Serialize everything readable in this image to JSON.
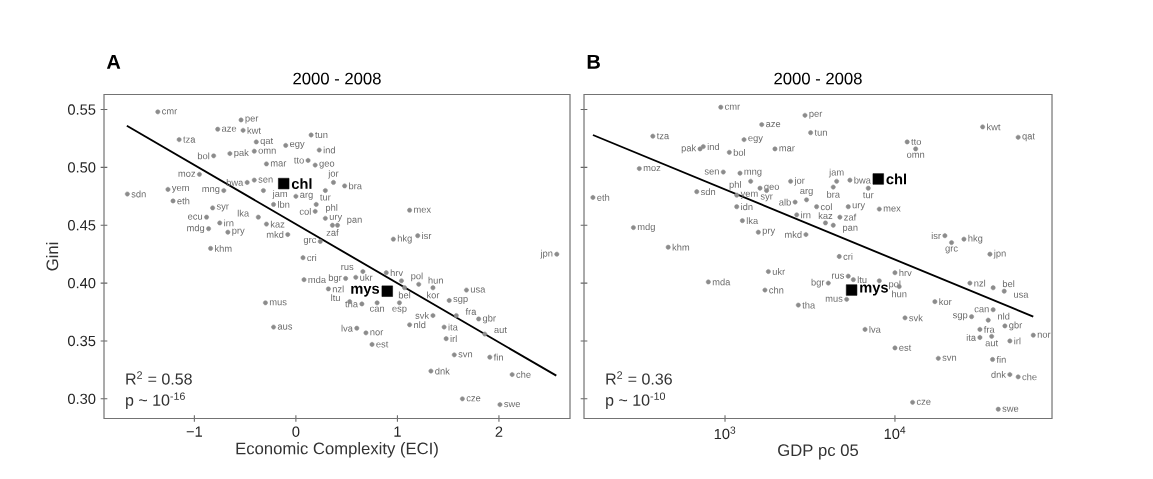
{
  "chart_data": [
    {
      "type": "scatter",
      "title": "2000 - 2008",
      "xlabel": "Economic Complexity (ECI)",
      "ylabel": "Gini",
      "marker": "circle",
      "xlim": [
        -1.89,
        2.7
      ],
      "ylim": [
        0.283,
        0.563
      ],
      "xticks": [
        {
          "value": -1,
          "label": "−1"
        },
        0,
        1,
        2
      ],
      "yticks": [
        {
          "value": 0.3,
          "label": "0.30"
        },
        {
          "value": 0.35,
          "label": "0.35"
        },
        {
          "value": 0.4,
          "label": "0.40"
        },
        {
          "value": 0.45,
          "label": "0.45"
        },
        {
          "value": 0.5,
          "label": "0.50"
        },
        {
          "value": 0.55,
          "label": "0.55"
        }
      ],
      "series": [
        {
          "color": "#8c8c8c",
          "x": [
            -1.36,
            -1.15,
            -0.77,
            -0.54,
            -0.52,
            -0.1,
            0.15,
            0.23,
            -0.81,
            -0.39,
            -0.65,
            -0.41,
            0.12,
            0.19,
            -0.95,
            -0.29,
            -0.48,
            -0.41,
            -0.32,
            0.37,
            0.48,
            -1.26,
            -1.66,
            -1.21,
            -0.71,
            -0.82,
            -0.88,
            -0.75,
            -0.86,
            -0.84,
            -0.67,
            -0.37,
            -0.29,
            -0.08,
            -0.22,
            0.0,
            0.29,
            0.2,
            0.19,
            0.29,
            0.36,
            0.41,
            0.24,
            0.07,
            0.08,
            0.32,
            -0.3,
            -0.22,
            1.12,
            1.2,
            0.96,
            2.57,
            0.66,
            0.59,
            0.89,
            0.49,
            1.04,
            1.07,
            1.21,
            1.35,
            1.68,
            1.51,
            1.02,
            0.8,
            0.65,
            0.53,
            1.35,
            1.58,
            1.8,
            1.12,
            1.46,
            1.86,
            1.48,
            0.6,
            0.69,
            0.75,
            1.33,
            1.56,
            1.91,
            2.13,
            1.64,
            2.01
          ],
          "values": [
            0.548,
            0.524,
            0.533,
            0.541,
            0.532,
            0.519,
            0.528,
            0.515,
            0.51,
            0.522,
            0.512,
            0.514,
            0.506,
            0.502,
            0.494,
            0.503,
            0.487,
            0.489,
            0.48,
            0.487,
            0.484,
            0.481,
            0.477,
            0.471,
            0.48,
            0.465,
            0.457,
            0.452,
            0.447,
            0.43,
            0.444,
            0.457,
            0.451,
            0.442,
            0.468,
            0.475,
            0.48,
            0.468,
            0.462,
            0.456,
            0.45,
            0.45,
            0.436,
            0.422,
            0.403,
            0.395,
            0.383,
            0.362,
            0.463,
            0.441,
            0.438,
            0.425,
            0.41,
            0.405,
            0.409,
            0.404,
            0.402,
            0.396,
            0.399,
            0.396,
            0.394,
            0.385,
            0.383,
            0.383,
            0.382,
            0.384,
            0.372,
            0.372,
            0.369,
            0.364,
            0.362,
            0.356,
            0.352,
            0.361,
            0.357,
            0.347,
            0.324,
            0.338,
            0.336,
            0.321,
            0.3,
            0.295
          ]
        },
        {
          "color": "#000000",
          "marker": "square",
          "x": [
            -0.12,
            0.9
          ],
          "values": [
            0.486,
            0.393
          ]
        },
        {
          "type": "line",
          "marker": "none",
          "color": "#000000",
          "x": [
            -1.665,
            2.565
          ],
          "values": [
            0.536,
            0.32
          ]
        }
      ],
      "annotations": [
        "A",
        "R$^{2}$ = 0.58",
        "p ~ 10$^{-16}$",
        {
          "text": "cmr",
          "x": -1.36,
          "y": 0.548
        },
        {
          "text": "tza",
          "x": -1.15,
          "y": 0.524
        },
        {
          "text": "aze",
          "x": -0.77,
          "y": 0.533
        },
        {
          "text": "per",
          "x": -0.54,
          "y": 0.541
        },
        {
          "text": "kwt",
          "x": -0.52,
          "y": 0.532
        },
        {
          "text": "egy",
          "x": -0.1,
          "y": 0.519
        },
        {
          "text": "tun",
          "x": 0.15,
          "y": 0.528
        },
        {
          "text": "ind",
          "x": 0.23,
          "y": 0.515
        },
        {
          "text": "bol",
          "x": -0.81,
          "y": 0.51
        },
        {
          "text": "qat",
          "x": -0.39,
          "y": 0.522
        },
        {
          "text": "pak",
          "x": -0.65,
          "y": 0.512
        },
        {
          "text": "omn",
          "x": -0.41,
          "y": 0.514
        },
        {
          "text": "tto",
          "x": 0.12,
          "y": 0.506
        },
        {
          "text": "geo",
          "x": 0.19,
          "y": 0.502
        },
        {
          "text": "moz",
          "x": -0.95,
          "y": 0.494
        },
        {
          "text": "mar",
          "x": -0.29,
          "y": 0.503
        },
        {
          "text": "bwa",
          "x": -0.48,
          "y": 0.487
        },
        {
          "text": "sen",
          "x": -0.41,
          "y": 0.489
        },
        {
          "text": "jam",
          "x": -0.32,
          "y": 0.48
        },
        {
          "text": "jor",
          "x": 0.37,
          "y": 0.487
        },
        {
          "text": "bra",
          "x": 0.48,
          "y": 0.484
        },
        {
          "text": "yem",
          "x": -1.26,
          "y": 0.481
        },
        {
          "text": "sdn",
          "x": -1.66,
          "y": 0.477
        },
        {
          "text": "eth",
          "x": -1.21,
          "y": 0.471
        },
        {
          "text": "mng",
          "x": -0.71,
          "y": 0.48
        },
        {
          "text": "syr",
          "x": -0.82,
          "y": 0.465
        },
        {
          "text": "ecu",
          "x": -0.88,
          "y": 0.457
        },
        {
          "text": "irn",
          "x": -0.75,
          "y": 0.452
        },
        {
          "text": "mdg",
          "x": -0.86,
          "y": 0.447
        },
        {
          "text": "khm",
          "x": -0.84,
          "y": 0.43
        },
        {
          "text": "pry",
          "x": -0.67,
          "y": 0.444
        },
        {
          "text": "lka",
          "x": -0.37,
          "y": 0.457
        },
        {
          "text": "kaz",
          "x": -0.29,
          "y": 0.451
        },
        {
          "text": "mkd",
          "x": -0.08,
          "y": 0.442
        },
        {
          "text": "lbn",
          "x": -0.22,
          "y": 0.468
        },
        {
          "text": "arg",
          "x": 0.0,
          "y": 0.475
        },
        {
          "text": "tur",
          "x": 0.29,
          "y": 0.48
        },
        {
          "text": "phl",
          "x": 0.2,
          "y": 0.468
        },
        {
          "text": "col",
          "x": 0.19,
          "y": 0.462
        },
        {
          "text": "ury",
          "x": 0.29,
          "y": 0.456
        },
        {
          "text": "zaf",
          "x": 0.36,
          "y": 0.45
        },
        {
          "text": "pan",
          "x": 0.41,
          "y": 0.45
        },
        {
          "text": "grc",
          "x": 0.24,
          "y": 0.436
        },
        {
          "text": "cri",
          "x": 0.07,
          "y": 0.422
        },
        {
          "text": "mda",
          "x": 0.08,
          "y": 0.403
        },
        {
          "text": "nzl",
          "x": 0.32,
          "y": 0.395
        },
        {
          "text": "mus",
          "x": -0.3,
          "y": 0.383
        },
        {
          "text": "aus",
          "x": -0.22,
          "y": 0.362
        },
        {
          "text": "mex",
          "x": 1.12,
          "y": 0.463
        },
        {
          "text": "isr",
          "x": 1.2,
          "y": 0.441
        },
        {
          "text": "hkg",
          "x": 0.96,
          "y": 0.438
        },
        {
          "text": "jpn",
          "x": 2.57,
          "y": 0.425
        },
        {
          "text": "rus",
          "x": 0.66,
          "y": 0.41
        },
        {
          "text": "ukr",
          "x": 0.59,
          "y": 0.405
        },
        {
          "text": "hrv",
          "x": 0.89,
          "y": 0.409
        },
        {
          "text": "bgr",
          "x": 0.49,
          "y": 0.404
        },
        {
          "text": "pol",
          "x": 1.04,
          "y": 0.402
        },
        {
          "text": "bel",
          "x": 1.07,
          "y": 0.396
        },
        {
          "text": "hun",
          "x": 1.21,
          "y": 0.399
        },
        {
          "text": "kor",
          "x": 1.35,
          "y": 0.396
        },
        {
          "text": "usa",
          "x": 1.68,
          "y": 0.394
        },
        {
          "text": "sgp",
          "x": 1.51,
          "y": 0.385
        },
        {
          "text": "esp",
          "x": 1.02,
          "y": 0.383
        },
        {
          "text": "can",
          "x": 0.8,
          "y": 0.383
        },
        {
          "text": "tha",
          "x": 0.65,
          "y": 0.382
        },
        {
          "text": "ltu",
          "x": 0.53,
          "y": 0.384
        },
        {
          "text": "svk",
          "x": 1.35,
          "y": 0.372
        },
        {
          "text": "fra",
          "x": 1.58,
          "y": 0.372
        },
        {
          "text": "gbr",
          "x": 1.8,
          "y": 0.369
        },
        {
          "text": "nld",
          "x": 1.12,
          "y": 0.364
        },
        {
          "text": "ita",
          "x": 1.46,
          "y": 0.362
        },
        {
          "text": "aut",
          "x": 1.86,
          "y": 0.356
        },
        {
          "text": "irl",
          "x": 1.48,
          "y": 0.352
        },
        {
          "text": "lva",
          "x": 0.6,
          "y": 0.361
        },
        {
          "text": "nor",
          "x": 0.69,
          "y": 0.357
        },
        {
          "text": "est",
          "x": 0.75,
          "y": 0.347
        },
        {
          "text": "dnk",
          "x": 1.33,
          "y": 0.324
        },
        {
          "text": "svn",
          "x": 1.56,
          "y": 0.338
        },
        {
          "text": "fin",
          "x": 1.91,
          "y": 0.336
        },
        {
          "text": "che",
          "x": 2.13,
          "y": 0.321
        },
        {
          "text": "cze",
          "x": 1.64,
          "y": 0.3
        },
        {
          "text": "swe",
          "x": 2.01,
          "y": 0.295
        },
        {
          "text": "chl",
          "x": -0.12,
          "y": 0.486
        },
        {
          "text": "mys",
          "x": 0.9,
          "y": 0.393
        }
      ]
    },
    {
      "type": "scatter",
      "title": "2000 - 2008",
      "xlabel": "GDP pc 05",
      "marker": "circle",
      "log": "x",
      "tick_labels": "x",
      "xlim": [
        148,
        84000
      ],
      "ylim": [
        0.283,
        0.563
      ],
      "xticks": [
        {
          "value": 1000,
          "label": "10$^{3}$"
        },
        {
          "value": 10000,
          "label": "10$^{4}$"
        }
      ],
      "yticks": [
        {
          "value": 0.3,
          "label": null
        },
        {
          "value": 0.35,
          "label": null
        },
        {
          "value": 0.4,
          "label": null
        },
        {
          "value": 0.45,
          "label": null
        },
        {
          "value": 0.5,
          "label": null
        },
        {
          "value": 0.55,
          "label": null
        }
      ],
      "series": [
        {
          "color": "#8c8c8c",
          "x": [
            944,
            1645,
            2955,
            3190,
            376,
            1294,
            745,
            713,
            1060,
            1968,
            313,
            977,
            1225,
            1416,
            1607,
            2432,
            1757,
            682,
            167,
            1172,
            1172,
            2585,
            3459,
            3018,
            4538,
            5432,
            4335,
            6966,
            5310,
            8090,
            4742,
            4335,
            1265,
            2642,
            3900,
            1570,
            2994,
            289,
            463,
            4700,
            1799,
            5310,
            5689,
            798,
            1718,
            4055,
            2700,
            5200,
            6668,
            10000,
            8090,
            10590,
            17180,
            19680,
            21530,
            25470,
            36220,
            27610,
            37830,
            43950,
            32810,
            53090,
            11800,
            13240,
            11460,
            10000,
            17990,
            37540,
            47450,
            53090,
            12700,
            40540,
            65170,
            47450,
            44360,
            37830,
            31620,
            31620,
            37070,
            28250,
            35400
          ],
          "values": [
            0.552,
            0.537,
            0.545,
            0.53,
            0.527,
            0.524,
            0.518,
            0.516,
            0.513,
            0.516,
            0.499,
            0.496,
            0.495,
            0.488,
            0.482,
            0.488,
            0.48,
            0.479,
            0.474,
            0.476,
            0.466,
            0.47,
            0.466,
            0.472,
            0.488,
            0.489,
            0.483,
            0.482,
            0.466,
            0.464,
            0.457,
            0.45,
            0.454,
            0.459,
            0.452,
            0.444,
            0.442,
            0.448,
            0.431,
            0.423,
            0.41,
            0.406,
            0.403,
            0.401,
            0.394,
            0.4,
            0.381,
            0.386,
            0.36,
            0.409,
            0.402,
            0.397,
            0.384,
            0.441,
            0.435,
            0.438,
            0.425,
            0.4,
            0.396,
            0.393,
            0.535,
            0.526,
            0.522,
            0.516,
            0.37,
            0.344,
            0.335,
            0.334,
            0.321,
            0.319,
            0.297,
            0.291,
            0.355,
            0.35,
            0.363,
            0.377,
            0.36,
            0.353,
            0.354,
            0.371,
            0.368
          ]
        },
        {
          "color": "#000000",
          "marker": "square",
          "x": [
            7980,
            5559
          ],
          "values": [
            0.49,
            0.394
          ]
        },
        {
          "type": "line",
          "marker": "none",
          "color": "#000000",
          "x": [
            167,
            65170
          ],
          "values": [
            0.528,
            0.371
          ]
        }
      ],
      "annotations": [
        "B",
        "R$^{2}$ = 0.36",
        "p ~ 10$^{-10}$",
        {
          "text": "cmr",
          "x": 944,
          "y": 0.552
        },
        {
          "text": "aze",
          "x": 1645,
          "y": 0.537
        },
        {
          "text": "per",
          "x": 2955,
          "y": 0.545
        },
        {
          "text": "tun",
          "x": 3190,
          "y": 0.53
        },
        {
          "text": "tza",
          "x": 376,
          "y": 0.527
        },
        {
          "text": "egy",
          "x": 1294,
          "y": 0.524
        },
        {
          "text": "ind",
          "x": 745,
          "y": 0.518
        },
        {
          "text": "pak",
          "x": 713,
          "y": 0.516
        },
        {
          "text": "bol",
          "x": 1060,
          "y": 0.513
        },
        {
          "text": "mar",
          "x": 1968,
          "y": 0.516
        },
        {
          "text": "moz",
          "x": 313,
          "y": 0.499
        },
        {
          "text": "sen",
          "x": 977,
          "y": 0.496
        },
        {
          "text": "mng",
          "x": 1225,
          "y": 0.495
        },
        {
          "text": "phl",
          "x": 1416,
          "y": 0.488
        },
        {
          "text": "geo",
          "x": 1607,
          "y": 0.482
        },
        {
          "text": "jor",
          "x": 2432,
          "y": 0.488
        },
        {
          "text": "syr",
          "x": 1757,
          "y": 0.48
        },
        {
          "text": "sdn",
          "x": 682,
          "y": 0.479
        },
        {
          "text": "eth",
          "x": 167,
          "y": 0.474
        },
        {
          "text": "yem",
          "x": 1172,
          "y": 0.476
        },
        {
          "text": "idn",
          "x": 1172,
          "y": 0.466
        },
        {
          "text": "alb",
          "x": 2585,
          "y": 0.47
        },
        {
          "text": "col",
          "x": 3459,
          "y": 0.466
        },
        {
          "text": "arg",
          "x": 3018,
          "y": 0.472
        },
        {
          "text": "jam",
          "x": 4538,
          "y": 0.488
        },
        {
          "text": "bwa",
          "x": 5432,
          "y": 0.489
        },
        {
          "text": "bra",
          "x": 4335,
          "y": 0.483
        },
        {
          "text": "tur",
          "x": 6966,
          "y": 0.482
        },
        {
          "text": "ury",
          "x": 5310,
          "y": 0.466
        },
        {
          "text": "mex",
          "x": 8090,
          "y": 0.464
        },
        {
          "text": "zaf",
          "x": 4742,
          "y": 0.457
        },
        {
          "text": "pan",
          "x": 4335,
          "y": 0.45
        },
        {
          "text": "lka",
          "x": 1265,
          "y": 0.454
        },
        {
          "text": "irn",
          "x": 2642,
          "y": 0.459
        },
        {
          "text": "kaz",
          "x": 3900,
          "y": 0.452
        },
        {
          "text": "pry",
          "x": 1570,
          "y": 0.444
        },
        {
          "text": "mkd",
          "x": 2994,
          "y": 0.442
        },
        {
          "text": "mdg",
          "x": 289,
          "y": 0.448
        },
        {
          "text": "khm",
          "x": 463,
          "y": 0.431
        },
        {
          "text": "cri",
          "x": 4700,
          "y": 0.423
        },
        {
          "text": "ukr",
          "x": 1799,
          "y": 0.41
        },
        {
          "text": "rus",
          "x": 5310,
          "y": 0.406
        },
        {
          "text": "ltu",
          "x": 5689,
          "y": 0.403
        },
        {
          "text": "mda",
          "x": 798,
          "y": 0.401
        },
        {
          "text": "chn",
          "x": 1718,
          "y": 0.394
        },
        {
          "text": "bgr",
          "x": 4055,
          "y": 0.4
        },
        {
          "text": "tha",
          "x": 2700,
          "y": 0.381
        },
        {
          "text": "mus",
          "x": 5200,
          "y": 0.386
        },
        {
          "text": "lva",
          "x": 6668,
          "y": 0.36
        },
        {
          "text": "hrv",
          "x": 10000,
          "y": 0.409
        },
        {
          "text": "pol",
          "x": 8090,
          "y": 0.402
        },
        {
          "text": "hun",
          "x": 10590,
          "y": 0.397
        },
        {
          "text": "kor",
          "x": 17180,
          "y": 0.384
        },
        {
          "text": "isr",
          "x": 19680,
          "y": 0.441
        },
        {
          "text": "grc",
          "x": 21530,
          "y": 0.435
        },
        {
          "text": "hkg",
          "x": 25470,
          "y": 0.438
        },
        {
          "text": "jpn",
          "x": 36220,
          "y": 0.425
        },
        {
          "text": "nzl",
          "x": 27610,
          "y": 0.4
        },
        {
          "text": "bel",
          "x": 37830,
          "y": 0.396
        },
        {
          "text": "usa",
          "x": 43950,
          "y": 0.393
        },
        {
          "text": "kwt",
          "x": 32810,
          "y": 0.535
        },
        {
          "text": "qat",
          "x": 53090,
          "y": 0.526
        },
        {
          "text": "tto",
          "x": 11800,
          "y": 0.522
        },
        {
          "text": "omn",
          "x": 13240,
          "y": 0.516
        },
        {
          "text": "svk",
          "x": 11460,
          "y": 0.37
        },
        {
          "text": "est",
          "x": 10000,
          "y": 0.344
        },
        {
          "text": "svn",
          "x": 17990,
          "y": 0.335
        },
        {
          "text": "fin",
          "x": 37540,
          "y": 0.334
        },
        {
          "text": "dnk",
          "x": 47450,
          "y": 0.321
        },
        {
          "text": "che",
          "x": 53090,
          "y": 0.319
        },
        {
          "text": "cze",
          "x": 12700,
          "y": 0.297
        },
        {
          "text": "swe",
          "x": 40540,
          "y": 0.291
        },
        {
          "text": "nor",
          "x": 65170,
          "y": 0.355
        },
        {
          "text": "irl",
          "x": 47450,
          "y": 0.35
        },
        {
          "text": "gbr",
          "x": 44360,
          "y": 0.363
        },
        {
          "text": "can",
          "x": 37830,
          "y": 0.377
        },
        {
          "text": "fra",
          "x": 31620,
          "y": 0.36
        },
        {
          "text": "ita",
          "x": 31620,
          "y": 0.353
        },
        {
          "text": "aut",
          "x": 37070,
          "y": 0.354
        },
        {
          "text": "sgp",
          "x": 28250,
          "y": 0.371
        },
        {
          "text": "nld",
          "x": 35400,
          "y": 0.368
        },
        {
          "text": "chl",
          "x": 7980,
          "y": 0.49
        },
        {
          "text": "mys",
          "x": 5559,
          "y": 0.394
        }
      ]
    }
  ]
}
